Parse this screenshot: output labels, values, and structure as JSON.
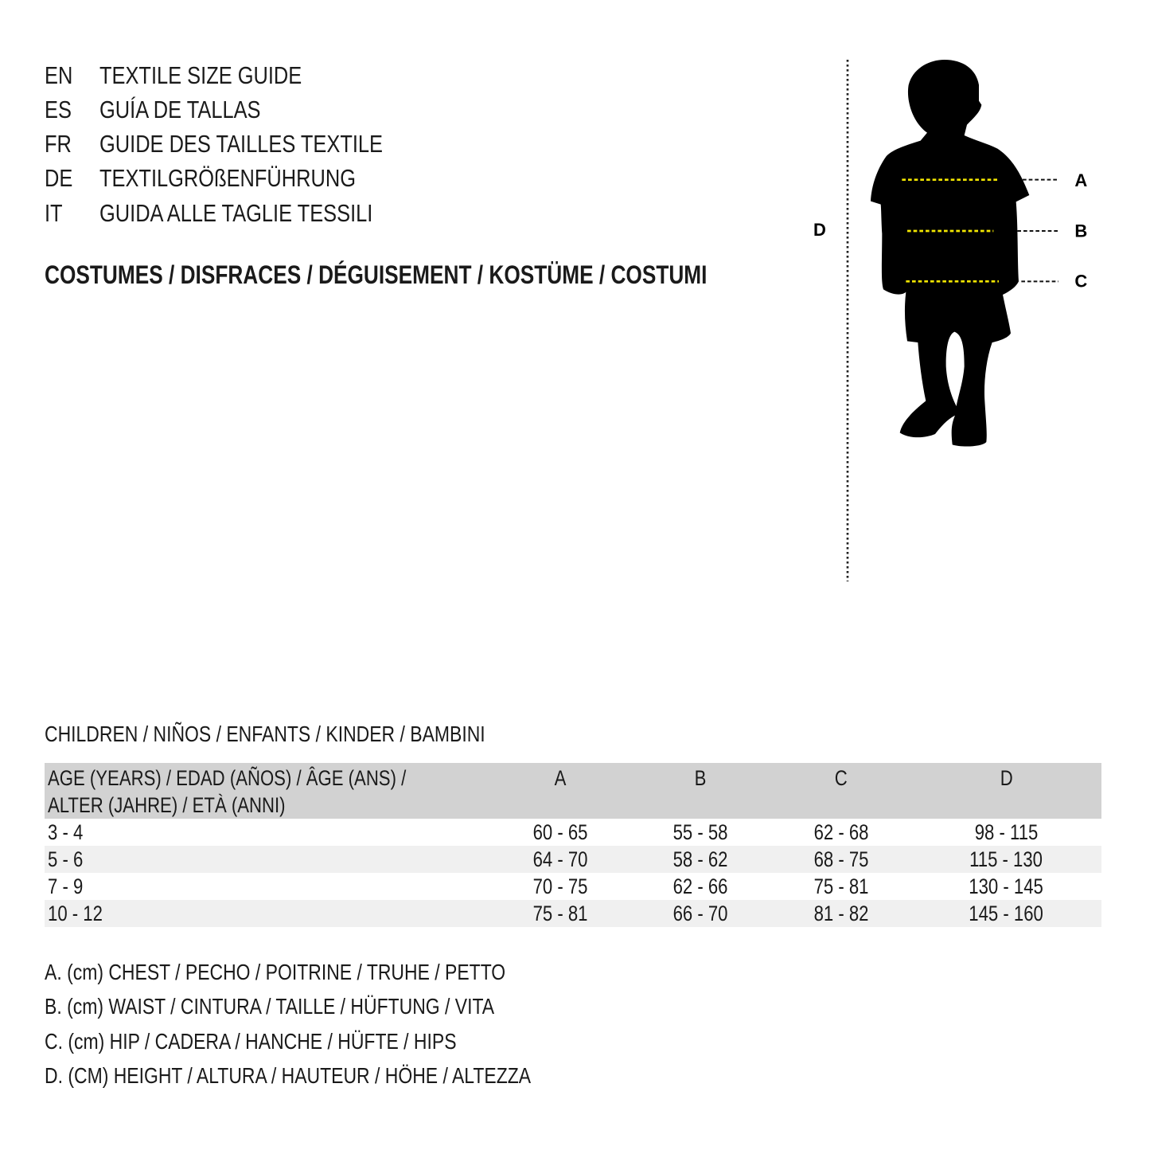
{
  "titles": [
    {
      "code": "EN",
      "text": "TEXTILE SIZE GUIDE"
    },
    {
      "code": "ES",
      "text": "GUÍA DE TALLAS"
    },
    {
      "code": "FR",
      "text": "GUIDE DES TAILLES TEXTILE"
    },
    {
      "code": "DE",
      "text": "TEXTILGRÖßENFÜHRUNG"
    },
    {
      "code": "IT",
      "text": "GUIDA ALLE TAGLIE TESSILI"
    }
  ],
  "category": "COSTUMES / DISFRACES / DÉGUISEMENT / KOSTÜME / COSTUMI",
  "figure": {
    "labels": {
      "a": "A",
      "b": "B",
      "c": "C",
      "d": "D"
    },
    "silhouette_color": "#000000",
    "measure_line_color": "#f2e600"
  },
  "group": "CHILDREN / NIÑOS / ENFANTS / KINDER / BAMBINI",
  "table": {
    "header_age_line1": "AGE (YEARS) / EDAD (AÑOS) / ÂGE (ANS) /",
    "header_age_line2": "ALTER (JAHRE) / ETÀ (ANNI)",
    "columns": [
      "A",
      "B",
      "C",
      "D"
    ],
    "rows": [
      [
        "3 - 4",
        "60 - 65",
        "55 - 58",
        "62 - 68",
        "98 - 115"
      ],
      [
        "5 - 6",
        "64 - 70",
        "58 - 62",
        "68 - 75",
        "115 - 130"
      ],
      [
        "7 - 9",
        "70 - 75",
        "62 - 66",
        "75 - 81",
        "130 - 145"
      ],
      [
        "10 - 12",
        "75 - 81",
        "66 - 70",
        "81 - 82",
        "145 - 160"
      ]
    ]
  },
  "legend": [
    "A. (cm) CHEST / PECHO / POITRINE / TRUHE / PETTO",
    "B. (cm) WAIST / CINTURA / TAILLE / HÜFTUNG / VITA",
    "C. (cm) HIP / CADERA / HANCHE / HÜFTE / HIPS",
    "D. (CM) HEIGHT / ALTURA / HAUTEUR / HÖHE / ALTEZZA"
  ]
}
